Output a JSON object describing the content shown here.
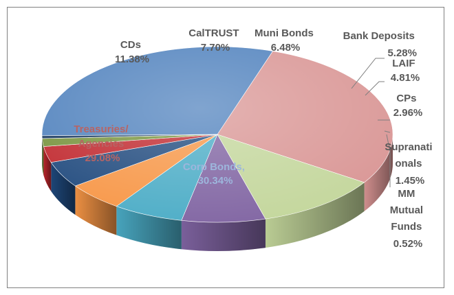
{
  "chart_data": {
    "type": "pie",
    "style": "3d",
    "title": "",
    "slices": [
      {
        "name": "Corp Bonds,",
        "value": 30.34,
        "label": "30.34%",
        "color": "#4f81bd"
      },
      {
        "name": "Treasuries/ Agencies",
        "value": 29.08,
        "label": "29.08%",
        "color": "#d99594"
      },
      {
        "name": "CDs",
        "value": 11.38,
        "label": "11.38%",
        "color": "#c3d69b"
      },
      {
        "name": "CalTRUST",
        "value": 7.7,
        "label": "7.70%",
        "color": "#8064a2"
      },
      {
        "name": "Muni Bonds",
        "value": 6.48,
        "label": "6.48%",
        "color": "#4bacc6"
      },
      {
        "name": "Bank Deposits",
        "value": 5.28,
        "label": "5.28%",
        "color": "#f79646"
      },
      {
        "name": "LAIF",
        "value": 4.81,
        "label": "4.81%",
        "color": "#1f497d"
      },
      {
        "name": "CPs",
        "value": 2.96,
        "label": "2.96%",
        "color": "#c0272d"
      },
      {
        "name": "Supranationals",
        "value": 1.45,
        "label": "1.45%",
        "color": "#77933c"
      },
      {
        "name": "MM Mutual Funds",
        "value": 0.52,
        "label": "0.52%",
        "color": "#17375e"
      }
    ],
    "label_lines": {
      "corp": [
        "Corp Bonds,",
        "30.34%"
      ],
      "treas": [
        "Treasuries/",
        "Agencies",
        "29.08%"
      ],
      "cds": [
        "CDs",
        "11.38%"
      ],
      "caltrust": [
        "CalTRUST",
        "7.70%"
      ],
      "muni": [
        "Muni Bonds",
        "6.48%"
      ],
      "bank": [
        "Bank Deposits",
        "5.28%"
      ],
      "laif": [
        "LAIF",
        "4.81%"
      ],
      "cps": [
        "CPs",
        "2.96%"
      ],
      "supra": [
        "Supranati",
        "onals",
        "1.45%"
      ],
      "mm": [
        "MM",
        "Mutual",
        "Funds",
        "0.52%"
      ]
    },
    "legend": "none"
  }
}
